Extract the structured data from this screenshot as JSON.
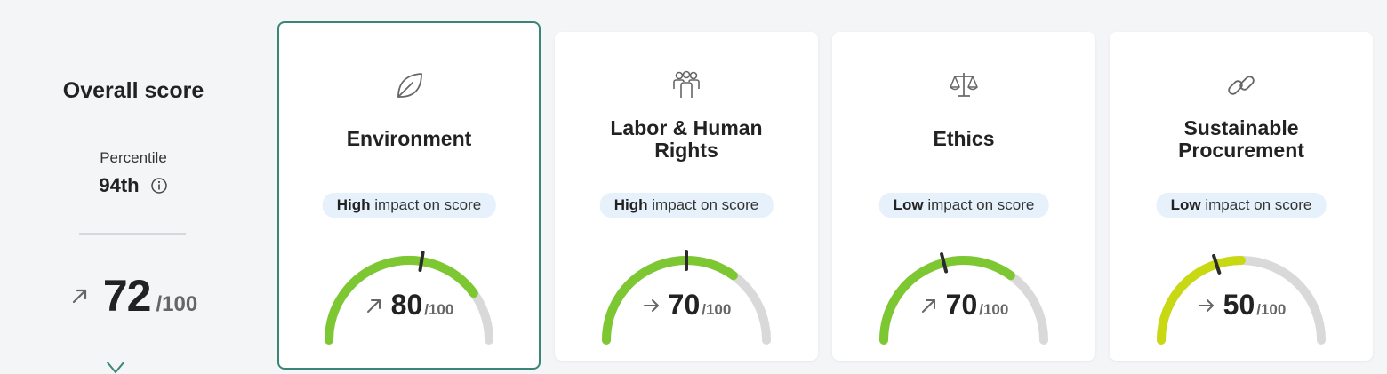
{
  "overall": {
    "title": "Overall score",
    "percentile_label": "Percentile",
    "percentile_value": "94th",
    "score": "72",
    "denominator": "/100",
    "trend": "up",
    "info_icon": "info-icon",
    "trend_icon": "arrow-up-right-icon"
  },
  "cards": [
    {
      "title": "Environment",
      "title_lines": [
        "Environment"
      ],
      "icon": "leaf-icon",
      "impact_level": "High",
      "impact_text": "impact on score",
      "score": "80",
      "denominator": "/100",
      "score_fraction": 0.8,
      "trend": "up",
      "marker_fraction": 0.55,
      "selected": true,
      "gauge_color": "#7dc832"
    },
    {
      "title": "Labor & Human Rights",
      "title_lines": [
        "Labor & Human",
        "Rights"
      ],
      "icon": "people-group-icon",
      "impact_level": "High",
      "impact_text": "impact on score",
      "score": "70",
      "denominator": "/100",
      "score_fraction": 0.7,
      "trend": "flat",
      "marker_fraction": 0.5,
      "selected": false,
      "gauge_color": "#7dc832"
    },
    {
      "title": "Ethics",
      "title_lines": [
        "Ethics"
      ],
      "icon": "scale-icon",
      "impact_level": "Low",
      "impact_text": "impact on score",
      "score": "70",
      "denominator": "/100",
      "score_fraction": 0.7,
      "trend": "up",
      "marker_fraction": 0.42,
      "selected": false,
      "gauge_color": "#7dc832"
    },
    {
      "title": "Sustainable Procurement",
      "title_lines": [
        "Sustainable",
        "Procurement"
      ],
      "icon": "link-icon",
      "impact_level": "Low",
      "impact_text": "impact on score",
      "score": "50",
      "denominator": "/100",
      "score_fraction": 0.5,
      "trend": "flat",
      "marker_fraction": 0.4,
      "selected": false,
      "gauge_color": "#c8d914"
    }
  ],
  "colors": {
    "gauge_track": "#d9d9d9",
    "marker": "#2b2b2b",
    "selected_border": "#3a8577",
    "badge_bg": "#e6f1fb",
    "icon_stroke": "#666666"
  }
}
